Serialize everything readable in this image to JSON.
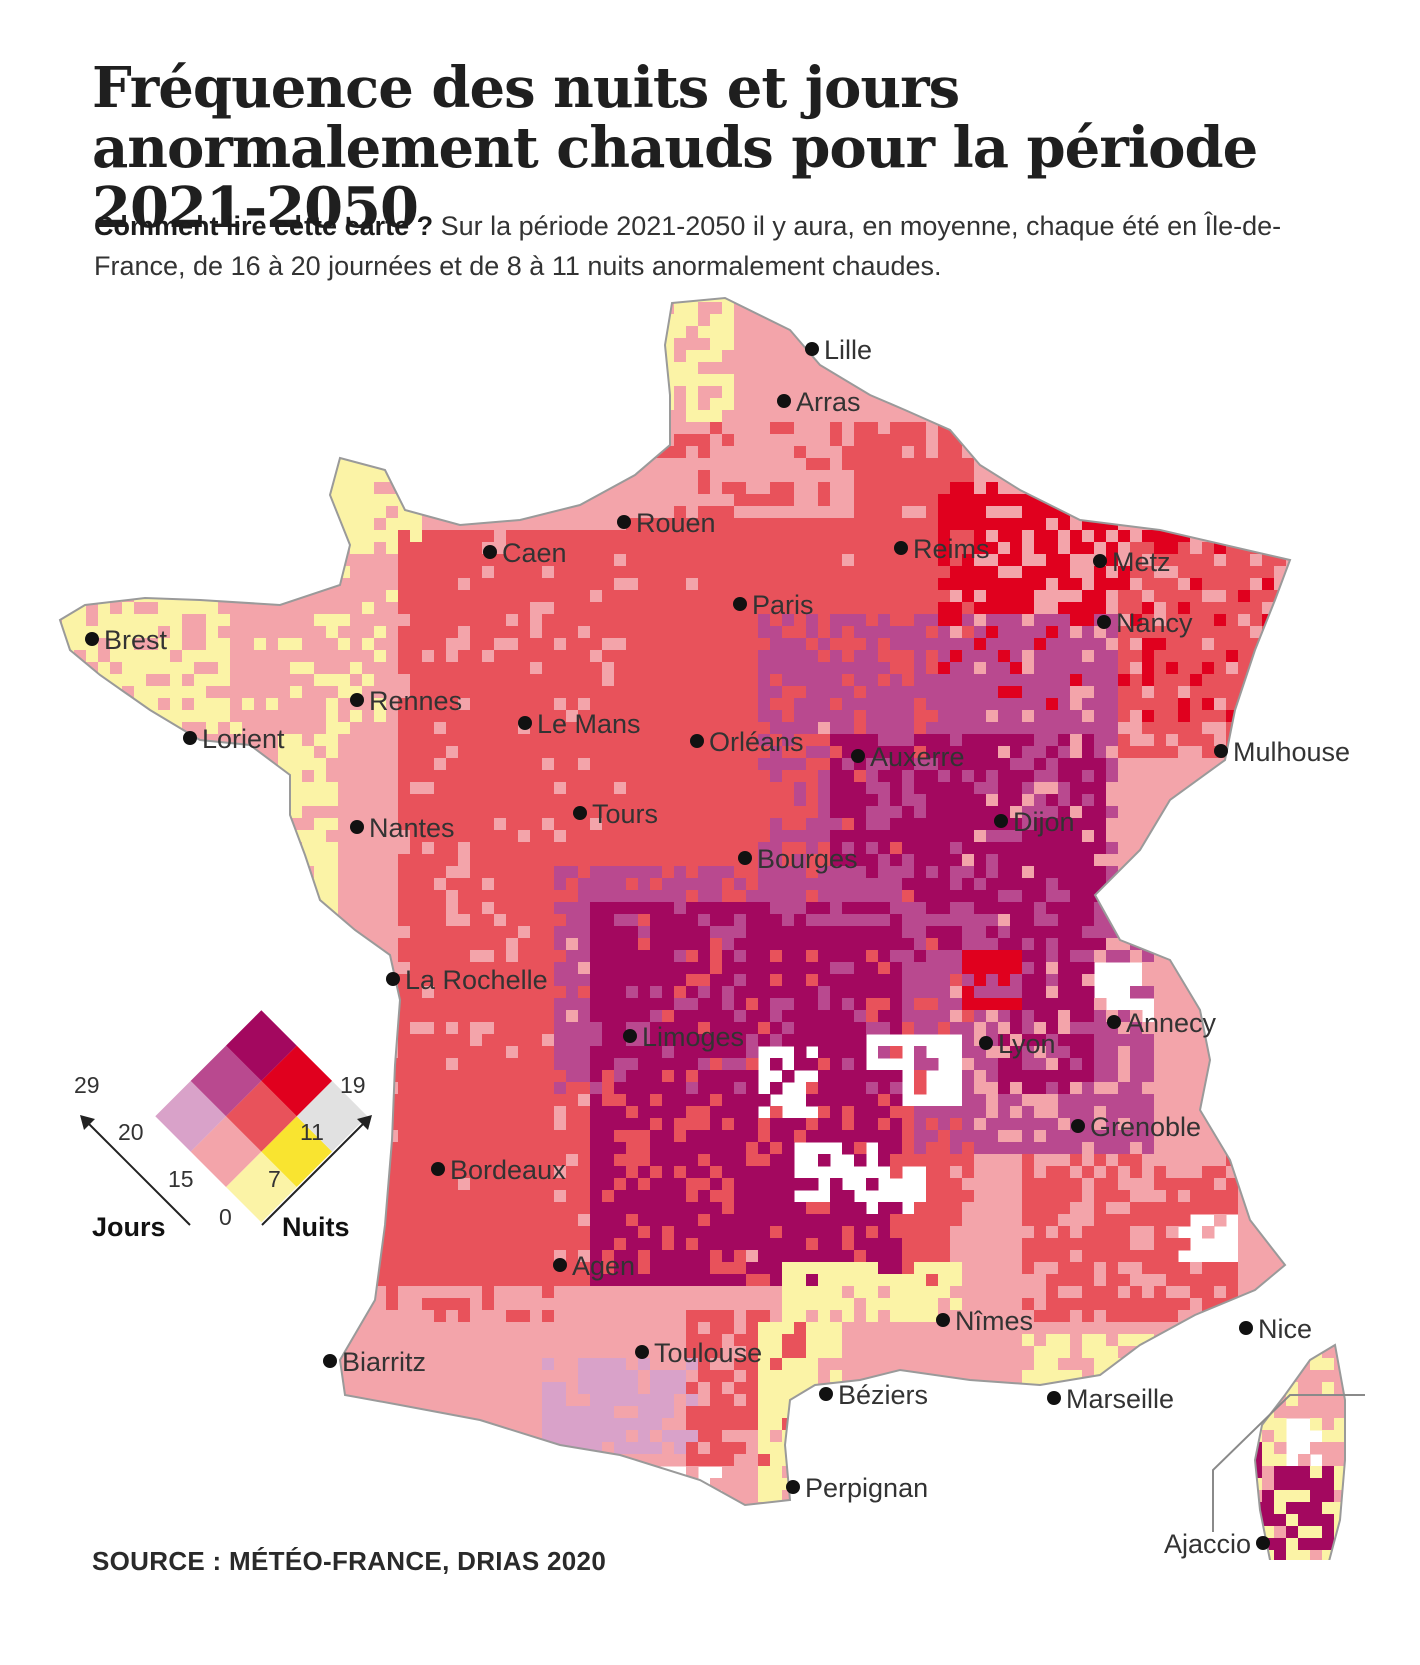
{
  "title": "Fréquence des nuits et jours anormalement chauds pour la période 2021-2050",
  "subtitle": {
    "lead": "Comment lire cette carte ?",
    "text": " Sur la période 2021-2050 il y aura, en moyenne, chaque été en Île-de-France, de 16 à 20 journées et de 8 à 11 nuits anormalement chaudes."
  },
  "source": "SOURCE : MÉTÉO-FRANCE, DRIAS 2020",
  "colors": {
    "pale_yellow": "#fbf3a6",
    "yellow": "#f9e430",
    "pink": "#f3a4aa",
    "red": "#e8525b",
    "bright_red": "#e0001e",
    "light_violet": "#d9a2c9",
    "violet": "#b9498f",
    "dark_magenta": "#a3085f",
    "grey": "#e1e1e1"
  },
  "legend": {
    "jours_label": "Jours",
    "nuits_label": "Nuits",
    "jours_ticks": [
      "29",
      "20",
      "15"
    ],
    "nuits_ticks": [
      "19",
      "11",
      "7"
    ],
    "origin": "0"
  },
  "cities": [
    {
      "name": "Lille"
    },
    {
      "name": "Arras"
    },
    {
      "name": "Rouen"
    },
    {
      "name": "Caen"
    },
    {
      "name": "Reims"
    },
    {
      "name": "Metz"
    },
    {
      "name": "Paris"
    },
    {
      "name": "Nancy"
    },
    {
      "name": "Brest"
    },
    {
      "name": "Rennes"
    },
    {
      "name": "Le Mans"
    },
    {
      "name": "Lorient"
    },
    {
      "name": "Orléans"
    },
    {
      "name": "Auxerre"
    },
    {
      "name": "Mulhouse"
    },
    {
      "name": "Tours"
    },
    {
      "name": "Nantes"
    },
    {
      "name": "Dijon"
    },
    {
      "name": "Bourges"
    },
    {
      "name": "La Rochelle"
    },
    {
      "name": "Limoges"
    },
    {
      "name": "Lyon"
    },
    {
      "name": "Annecy"
    },
    {
      "name": "Grenoble"
    },
    {
      "name": "Bordeaux"
    },
    {
      "name": "Agen"
    },
    {
      "name": "Nîmes"
    },
    {
      "name": "Nice"
    },
    {
      "name": "Toulouse"
    },
    {
      "name": "Biarritz"
    },
    {
      "name": "Béziers"
    },
    {
      "name": "Marseille"
    },
    {
      "name": "Perpignan"
    },
    {
      "name": "Ajaccio"
    }
  ]
}
